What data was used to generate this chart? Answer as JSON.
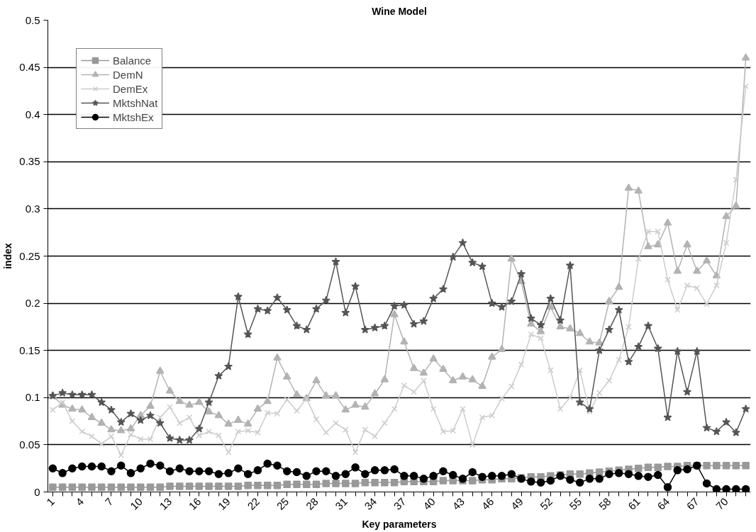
{
  "chart_data": {
    "type": "line",
    "title": "Wine Model",
    "xlabel": "Key parameters",
    "ylabel": "index",
    "categories": [
      "1",
      null,
      null,
      "4",
      null,
      null,
      "7",
      null,
      null,
      "10",
      null,
      null,
      "13",
      null,
      null,
      "16",
      null,
      null,
      "19",
      null,
      null,
      "22",
      null,
      null,
      "25",
      null,
      null,
      "28",
      null,
      null,
      "31",
      null,
      null,
      "34",
      null,
      null,
      "37",
      null,
      null,
      "40",
      null,
      null,
      "43",
      null,
      null,
      "46",
      null,
      null,
      "49",
      null,
      null,
      "52",
      null,
      null,
      "55",
      null,
      null,
      "58",
      null,
      null,
      "61",
      null,
      null,
      "64",
      null,
      null,
      "67",
      null,
      null,
      "70",
      null,
      null
    ],
    "ylim": [
      0,
      0.5
    ],
    "yticks": [
      0,
      0.05,
      0.1,
      0.15,
      0.2,
      0.25,
      0.3,
      0.35,
      0.4,
      0.45,
      0.5
    ],
    "grid": "y",
    "legend": "top left",
    "series": [
      {
        "name": "Balance",
        "color": "#999999",
        "marker": "square",
        "values": [
          0.005,
          0.005,
          0.005,
          0.005,
          0.005,
          0.005,
          0.005,
          0.005,
          0.005,
          0.005,
          0.005,
          0.005,
          0.006,
          0.006,
          0.006,
          0.006,
          0.006,
          0.006,
          0.006,
          0.006,
          0.007,
          0.007,
          0.007,
          0.007,
          0.008,
          0.008,
          0.008,
          0.008,
          0.009,
          0.009,
          0.009,
          0.009,
          0.01,
          0.01,
          0.01,
          0.01,
          0.011,
          0.011,
          0.011,
          0.011,
          0.012,
          0.012,
          0.012,
          0.012,
          0.013,
          0.013,
          0.014,
          0.014,
          0.015,
          0.016,
          0.016,
          0.017,
          0.018,
          0.019,
          0.019,
          0.02,
          0.021,
          0.022,
          0.023,
          0.024,
          0.025,
          0.026,
          0.026,
          0.027,
          0.027,
          0.028,
          0.028,
          0.028,
          0.028,
          0.028,
          0.028,
          0.028
        ]
      },
      {
        "name": "DemN",
        "color": "#b3b3b3",
        "marker": "triangle",
        "values": [
          0.102,
          0.092,
          0.088,
          0.087,
          0.079,
          0.073,
          0.066,
          0.065,
          0.067,
          0.081,
          0.091,
          0.128,
          0.107,
          0.096,
          0.092,
          0.095,
          0.085,
          0.081,
          0.072,
          0.076,
          0.072,
          0.088,
          0.096,
          0.142,
          0.122,
          0.103,
          0.099,
          0.118,
          0.102,
          0.102,
          0.087,
          0.092,
          0.09,
          0.104,
          0.119,
          0.188,
          0.159,
          0.131,
          0.126,
          0.141,
          0.13,
          0.118,
          0.122,
          0.119,
          0.112,
          0.143,
          0.151,
          0.247,
          0.223,
          0.178,
          0.17,
          0.196,
          0.175,
          0.173,
          0.168,
          0.159,
          0.158,
          0.202,
          0.217,
          0.322,
          0.319,
          0.26,
          0.262,
          0.285,
          0.234,
          0.262,
          0.234,
          0.245,
          0.229,
          0.292,
          0.303,
          0.46
        ]
      },
      {
        "name": "DemEx",
        "color": "#cccccc",
        "marker": "cross",
        "values": [
          0.087,
          0.095,
          0.075,
          0.064,
          0.059,
          0.051,
          0.059,
          0.039,
          0.061,
          0.056,
          0.056,
          0.079,
          0.09,
          0.073,
          0.079,
          0.06,
          0.064,
          0.06,
          0.042,
          0.064,
          0.065,
          0.063,
          0.084,
          0.083,
          0.098,
          0.086,
          0.099,
          0.077,
          0.063,
          0.073,
          0.066,
          0.042,
          0.066,
          0.059,
          0.073,
          0.088,
          0.113,
          0.106,
          0.118,
          0.088,
          0.064,
          0.065,
          0.088,
          0.05,
          0.079,
          0.081,
          0.099,
          0.112,
          0.135,
          0.167,
          0.163,
          0.129,
          0.088,
          0.1,
          0.129,
          0.085,
          0.105,
          0.118,
          0.14,
          0.175,
          0.247,
          0.276,
          0.276,
          0.225,
          0.193,
          0.219,
          0.216,
          0.199,
          0.219,
          0.264,
          0.331,
          0.43
        ]
      },
      {
        "name": "MktshNat",
        "color": "#555555",
        "marker": "star",
        "values": [
          0.102,
          0.105,
          0.103,
          0.103,
          0.103,
          0.095,
          0.087,
          0.074,
          0.083,
          0.076,
          0.081,
          0.073,
          0.057,
          0.055,
          0.055,
          0.067,
          0.095,
          0.123,
          0.133,
          0.207,
          0.167,
          0.194,
          0.192,
          0.206,
          0.193,
          0.176,
          0.172,
          0.194,
          0.203,
          0.244,
          0.19,
          0.218,
          0.172,
          0.174,
          0.176,
          0.197,
          0.198,
          0.178,
          0.181,
          0.205,
          0.215,
          0.249,
          0.264,
          0.243,
          0.239,
          0.2,
          0.196,
          0.202,
          0.231,
          0.184,
          0.177,
          0.205,
          0.182,
          0.24,
          0.095,
          0.088,
          0.15,
          0.172,
          0.193,
          0.138,
          0.154,
          0.176,
          0.152,
          0.079,
          0.149,
          0.106,
          0.149,
          0.068,
          0.064,
          0.074,
          0.063,
          0.088
        ]
      },
      {
        "name": "MktshEx",
        "color": "#000000",
        "marker": "circle",
        "values": [
          0.025,
          0.02,
          0.025,
          0.027,
          0.027,
          0.027,
          0.022,
          0.028,
          0.02,
          0.025,
          0.03,
          0.028,
          0.022,
          0.025,
          0.022,
          0.022,
          0.022,
          0.019,
          0.02,
          0.025,
          0.019,
          0.023,
          0.03,
          0.028,
          0.022,
          0.021,
          0.017,
          0.022,
          0.022,
          0.017,
          0.019,
          0.026,
          0.019,
          0.023,
          0.023,
          0.024,
          0.017,
          0.017,
          0.014,
          0.017,
          0.022,
          0.018,
          0.014,
          0.021,
          0.016,
          0.017,
          0.017,
          0.019,
          0.014,
          0.011,
          0.01,
          0.012,
          0.017,
          0.013,
          0.01,
          0.014,
          0.014,
          0.019,
          0.02,
          0.019,
          0.017,
          0.016,
          0.018,
          0.005,
          0.023,
          0.024,
          0.028,
          0.009,
          0.003,
          0.003,
          0.003,
          0.003
        ]
      }
    ]
  }
}
